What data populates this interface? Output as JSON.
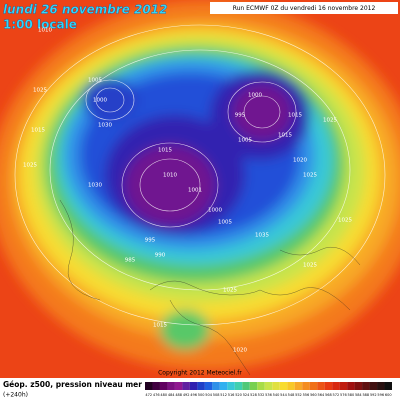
{
  "header": {
    "date": "lundi 26 novembre 2012",
    "time": "1:00 locale",
    "run": "Run ECMWF 0Z du vendredi 16 novembre 2012"
  },
  "footer": {
    "field": "Géop. z500, pression niveau mer",
    "lead": "(+240h)",
    "copyright": "Copyright 2012 Meteociel.fr"
  },
  "isobar_labels": [
    1010,
    1025,
    1015,
    1025,
    1005,
    1000,
    1030,
    1030,
    1015,
    1010,
    1001,
    1000,
    1005,
    995,
    990,
    985,
    1000,
    995,
    1005,
    1015,
    1020,
    1025,
    1015,
    1025,
    1025,
    1035,
    1025,
    1025,
    1015,
    1020
  ],
  "scale": [
    472,
    476,
    480,
    484,
    488,
    492,
    496,
    500,
    504,
    508,
    512,
    516,
    520,
    524,
    528,
    532,
    536,
    540,
    544,
    548,
    552,
    556,
    560,
    564,
    568,
    572,
    576,
    580,
    584,
    588,
    592,
    596,
    600
  ]
}
